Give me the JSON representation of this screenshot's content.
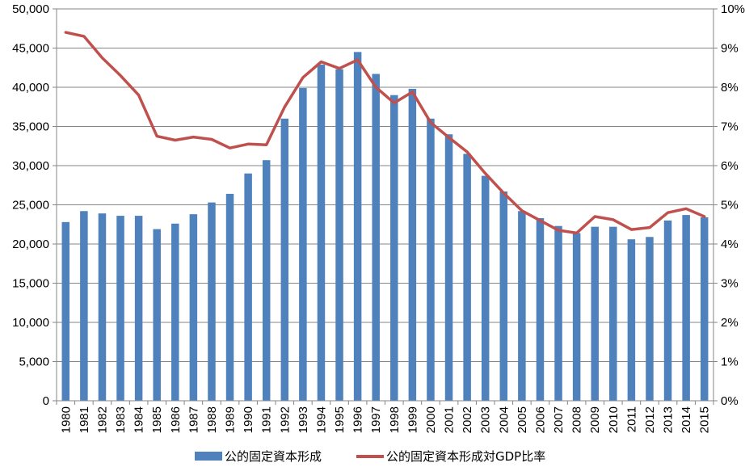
{
  "chart_data": {
    "type": "bar+line",
    "title": "",
    "categories": [
      "1980",
      "1981",
      "1982",
      "1983",
      "1984",
      "1985",
      "1986",
      "1987",
      "1988",
      "1989",
      "1990",
      "1991",
      "1992",
      "1993",
      "1994",
      "1995",
      "1996",
      "1997",
      "1998",
      "1999",
      "2000",
      "2001",
      "2002",
      "2003",
      "2004",
      "2005",
      "2006",
      "2007",
      "2008",
      "2009",
      "2010",
      "2011",
      "2012",
      "2013",
      "2014",
      "2015"
    ],
    "series": [
      {
        "name": "公的固定資本形成",
        "type": "bar",
        "axis": "left",
        "color": "#4f81bd",
        "values": [
          22800,
          24200,
          23900,
          23600,
          23600,
          21900,
          22600,
          23800,
          25300,
          26400,
          29000,
          30700,
          36000,
          39900,
          42900,
          42300,
          44500,
          41700,
          39000,
          39800,
          36000,
          34000,
          31500,
          28700,
          26700,
          24200,
          23300,
          22300,
          21400,
          22200,
          22200,
          20600,
          20900,
          23000,
          23700,
          23400
        ]
      },
      {
        "name": "公的固定資本形成対GDP比率",
        "type": "line",
        "axis": "right",
        "color": "#c0504d",
        "values": [
          9.4,
          9.3,
          8.75,
          8.3,
          7.8,
          6.75,
          6.65,
          6.73,
          6.67,
          6.45,
          6.55,
          6.53,
          7.5,
          8.25,
          8.65,
          8.48,
          8.7,
          8.0,
          7.6,
          7.88,
          7.1,
          6.72,
          6.35,
          5.8,
          5.3,
          4.85,
          4.6,
          4.35,
          4.28,
          4.7,
          4.62,
          4.37,
          4.42,
          4.8,
          4.9,
          4.7
        ]
      }
    ],
    "y_left": {
      "min": 0,
      "max": 50000,
      "step": 5000,
      "ticks": [
        "0",
        "5,000",
        "10,000",
        "15,000",
        "20,000",
        "25,000",
        "30,000",
        "35,000",
        "40,000",
        "45,000",
        "50,000"
      ]
    },
    "y_right": {
      "min": 0,
      "max": 10,
      "step": 1,
      "ticks": [
        "0%",
        "1%",
        "2%",
        "3%",
        "4%",
        "5%",
        "6%",
        "7%",
        "8%",
        "9%",
        "10%"
      ]
    },
    "grid": true,
    "legend_position": "bottom"
  }
}
